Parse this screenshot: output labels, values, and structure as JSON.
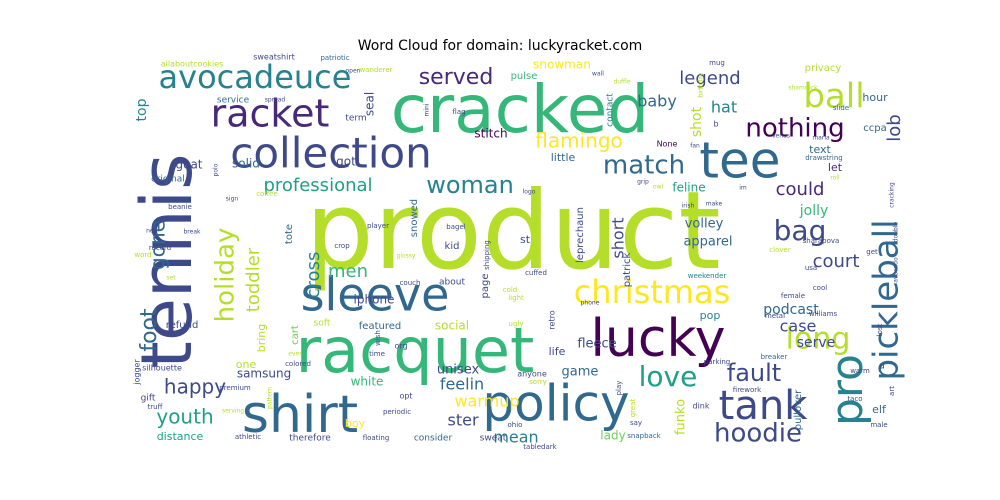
{
  "chart_data": {
    "type": "wordcloud",
    "title": "Word Cloud for domain: luckyracket.com",
    "palette": [
      "#440154",
      "#482878",
      "#3e4989",
      "#31688e",
      "#26828e",
      "#1f9e89",
      "#35b779",
      "#6ece58",
      "#b5de2b",
      "#fde725"
    ],
    "words": [
      {
        "text": "product",
        "weight": 100,
        "color": "#b5de2b"
      },
      {
        "text": "tennis",
        "weight": 72,
        "color": "#3e4989",
        "rotate": true
      },
      {
        "text": "cracked",
        "weight": 66,
        "color": "#35b779"
      },
      {
        "text": "racquet",
        "weight": 64,
        "color": "#35b779"
      },
      {
        "text": "shirt",
        "weight": 50,
        "color": "#31688e"
      },
      {
        "text": "policy",
        "weight": 50,
        "color": "#31688e"
      },
      {
        "text": "lucky",
        "weight": 50,
        "color": "#440154"
      },
      {
        "text": "sleeve",
        "weight": 46,
        "color": "#31688e"
      },
      {
        "text": "tee",
        "weight": 46,
        "color": "#31688e"
      },
      {
        "text": "collection",
        "weight": 42,
        "color": "#3e4989"
      },
      {
        "text": "tank",
        "weight": 40,
        "color": "#3e4989"
      },
      {
        "text": "racket",
        "weight": 38,
        "color": "#482878"
      },
      {
        "text": "avocadeuce",
        "weight": 34,
        "color": "#26828e"
      },
      {
        "text": "christmas",
        "weight": 32,
        "color": "#fde725"
      },
      {
        "text": "pickleball",
        "weight": 34,
        "color": "#31688e",
        "rotate": true
      },
      {
        "text": "pro",
        "weight": 38,
        "color": "#26828e",
        "rotate": true
      },
      {
        "text": "ball",
        "weight": 32,
        "color": "#b5de2b"
      },
      {
        "text": "long",
        "weight": 30,
        "color": "#b5de2b"
      },
      {
        "text": "love",
        "weight": 28,
        "color": "#1f9e89"
      },
      {
        "text": "hoodie",
        "weight": 26,
        "color": "#3e4989"
      },
      {
        "text": "holiday",
        "weight": 28,
        "color": "#b5de2b",
        "rotate": true
      },
      {
        "text": "nothing",
        "weight": 26,
        "color": "#440154"
      },
      {
        "text": "match",
        "weight": 26,
        "color": "#31688e"
      },
      {
        "text": "woman",
        "weight": 24,
        "color": "#26828e"
      },
      {
        "text": "bag",
        "weight": 26,
        "color": "#3e4989"
      },
      {
        "text": "fault",
        "weight": 24,
        "color": "#3e4989"
      },
      {
        "text": "foot",
        "weight": 24,
        "color": "#31688e",
        "rotate": true
      },
      {
        "text": "served",
        "weight": 22,
        "color": "#482878"
      },
      {
        "text": "youth",
        "weight": 20,
        "color": "#1f9e89"
      },
      {
        "text": "happy",
        "weight": 20,
        "color": "#3e4989"
      },
      {
        "text": "flamingo",
        "weight": 20,
        "color": "#fde725"
      },
      {
        "text": "professional",
        "weight": 18,
        "color": "#1f9e89"
      },
      {
        "text": "could",
        "weight": 18,
        "color": "#482878"
      },
      {
        "text": "court",
        "weight": 18,
        "color": "#3e4989"
      },
      {
        "text": "legend",
        "weight": 18,
        "color": "#3e4989"
      },
      {
        "text": "cross",
        "weight": 18,
        "color": "#26828e",
        "rotate": true
      },
      {
        "text": "toddler",
        "weight": 18,
        "color": "#b5de2b",
        "rotate": true
      },
      {
        "text": "gone",
        "weight": 20,
        "color": "#31688e",
        "rotate": true
      },
      {
        "text": "men",
        "weight": 18,
        "color": "#35b779"
      },
      {
        "text": "feelin",
        "weight": 16,
        "color": "#31688e"
      },
      {
        "text": "warmup",
        "weight": 16,
        "color": "#fde725"
      },
      {
        "text": "mean",
        "weight": 16,
        "color": "#26828e"
      },
      {
        "text": "case",
        "weight": 16,
        "color": "#3e4989"
      },
      {
        "text": "lob",
        "weight": 18,
        "color": "#3e4989",
        "rotate": true
      },
      {
        "text": "baby",
        "weight": 16,
        "color": "#31688e"
      },
      {
        "text": "hat",
        "weight": 16,
        "color": "#26828e"
      },
      {
        "text": "short",
        "weight": 16,
        "color": "#3e4989",
        "rotate": true
      },
      {
        "text": "ster",
        "weight": 16,
        "color": "#3e4989"
      },
      {
        "text": "shot",
        "weight": 14,
        "color": "#b5de2b",
        "rotate": true
      },
      {
        "text": "podcast",
        "weight": 14,
        "color": "#31688e"
      },
      {
        "text": "serve",
        "weight": 14,
        "color": "#3e4989"
      },
      {
        "text": "jolly",
        "weight": 14,
        "color": "#35b779"
      },
      {
        "text": "volley",
        "weight": 13,
        "color": "#31688e"
      },
      {
        "text": "apparel",
        "weight": 13,
        "color": "#31688e"
      },
      {
        "text": "fleece",
        "weight": 13,
        "color": "#3e4989"
      },
      {
        "text": "unisex",
        "weight": 13,
        "color": "#3e4989"
      },
      {
        "text": "game",
        "weight": 13,
        "color": "#31688e"
      },
      {
        "text": "funko",
        "weight": 13,
        "color": "#b5de2b",
        "rotate": true
      },
      {
        "text": "lady",
        "weight": 12,
        "color": "#6ece58"
      },
      {
        "text": "samsung",
        "weight": 12,
        "color": "#3e4989"
      },
      {
        "text": "white",
        "weight": 12,
        "color": "#35b779"
      },
      {
        "text": "social",
        "weight": 12,
        "color": "#b5de2b"
      },
      {
        "text": "iphone",
        "weight": 12,
        "color": "#3e4989"
      },
      {
        "text": "snowman",
        "weight": 12,
        "color": "#fde725"
      },
      {
        "text": "stitch",
        "weight": 12,
        "color": "#440154"
      },
      {
        "text": "solid",
        "weight": 12,
        "color": "#31688e"
      },
      {
        "text": "goat",
        "weight": 12,
        "color": "#3e4989"
      },
      {
        "text": "seal",
        "weight": 12,
        "color": "#3e4989",
        "rotate": true
      },
      {
        "text": "got",
        "weight": 12,
        "color": "#3e4989"
      },
      {
        "text": "top",
        "weight": 14,
        "color": "#26828e",
        "rotate": true
      },
      {
        "text": "little",
        "weight": 11,
        "color": "#31688e"
      },
      {
        "text": "feline",
        "weight": 12,
        "color": "#1f9e89"
      },
      {
        "text": "elf",
        "weight": 11,
        "color": "#31688e"
      },
      {
        "text": "pop",
        "weight": 11,
        "color": "#26828e"
      },
      {
        "text": "hour",
        "weight": 11,
        "color": "#31688e"
      },
      {
        "text": "text",
        "weight": 11,
        "color": "#31688e"
      },
      {
        "text": "let",
        "weight": 11,
        "color": "#482878"
      },
      {
        "text": "ccpa",
        "weight": 10,
        "color": "#31688e"
      },
      {
        "text": "one",
        "weight": 11,
        "color": "#b5de2b"
      },
      {
        "text": "boy",
        "weight": 11,
        "color": "#fde725"
      },
      {
        "text": "life",
        "weight": 11,
        "color": "#3e4989"
      },
      {
        "text": "distance",
        "weight": 11,
        "color": "#1f9e89"
      },
      {
        "text": "pullover",
        "weight": 10,
        "color": "#31688e",
        "rotate": true
      },
      {
        "text": "bring",
        "weight": 11,
        "color": "#b5de2b",
        "rotate": true
      },
      {
        "text": "featured",
        "weight": 10,
        "color": "#31688e"
      },
      {
        "text": "refund",
        "weight": 10,
        "color": "#3e4989"
      },
      {
        "text": "tote",
        "weight": 10,
        "color": "#31688e",
        "rotate": true
      },
      {
        "text": "cart",
        "weight": 10,
        "color": "#6ece58",
        "rotate": true
      },
      {
        "text": "snowed",
        "weight": 10,
        "color": "#31688e",
        "rotate": true
      },
      {
        "text": "kid",
        "weight": 10,
        "color": "#3e4989"
      },
      {
        "text": "st",
        "weight": 11,
        "color": "#3e4989"
      },
      {
        "text": "page",
        "weight": 10,
        "color": "#3e4989",
        "rotate": true
      },
      {
        "text": "leprechaun",
        "weight": 10,
        "color": "#3e4989",
        "rotate": true
      },
      {
        "text": "patrick",
        "weight": 10,
        "color": "#3e4989",
        "rotate": true
      },
      {
        "text": "privacy",
        "weight": 10,
        "color": "#b5de2b"
      },
      {
        "text": "served",
        "weight": 1,
        "color": "#ffffff",
        "hidden": true
      },
      {
        "text": "pulse",
        "weight": 10,
        "color": "#35b779"
      },
      {
        "text": "contact",
        "weight": 9,
        "color": "#26828e",
        "rotate": true
      },
      {
        "text": "service",
        "weight": 9,
        "color": "#31688e"
      },
      {
        "text": "term",
        "weight": 9,
        "color": "#3e4989"
      },
      {
        "text": "original",
        "weight": 9,
        "color": "#31688e"
      },
      {
        "text": "therefore",
        "weight": 9,
        "color": "#3e4989"
      },
      {
        "text": "consider",
        "weight": 9,
        "color": "#31688e"
      },
      {
        "text": "sweat",
        "weight": 9,
        "color": "#3e4989"
      },
      {
        "text": "jogger",
        "weight": 8,
        "color": "#3e4989",
        "rotate": true
      },
      {
        "text": "silhouette",
        "weight": 8,
        "color": "#3e4989"
      },
      {
        "text": "gift",
        "weight": 9,
        "color": "#3e4989"
      },
      {
        "text": "about",
        "weight": 9,
        "color": "#3e4989"
      },
      {
        "text": "soft",
        "weight": 9,
        "color": "#b5de2b"
      },
      {
        "text": "sweatshirt",
        "weight": 8,
        "color": "#3e4989"
      },
      {
        "text": "allaboutcookies",
        "weight": 8,
        "color": "#b5de2b"
      },
      {
        "text": "patriotic",
        "weight": 7,
        "color": "#31688e"
      },
      {
        "text": "mug",
        "weight": 7,
        "color": "#3e4989"
      },
      {
        "text": "slide",
        "weight": 7,
        "color": "#31688e"
      },
      {
        "text": "drawstring",
        "weight": 7,
        "color": "#31688e"
      },
      {
        "text": "cracking",
        "weight": 6,
        "color": "#3e4989",
        "rotate": true
      },
      {
        "text": "sharapova",
        "weight": 7,
        "color": "#3e4989"
      },
      {
        "text": "clover",
        "weight": 7,
        "color": "#b5de2b"
      },
      {
        "text": "weekender",
        "weight": 7,
        "color": "#26828e"
      },
      {
        "text": "williams",
        "weight": 7,
        "color": "#3e4989"
      },
      {
        "text": "metal",
        "weight": 7,
        "color": "#3e4989"
      },
      {
        "text": "breaker",
        "weight": 7,
        "color": "#31688e"
      },
      {
        "text": "parking",
        "weight": 7,
        "color": "#3e4989"
      },
      {
        "text": "firework",
        "weight": 7,
        "color": "#3e4989"
      },
      {
        "text": "snapback",
        "weight": 7,
        "color": "#31688e"
      },
      {
        "text": "tabledark",
        "weight": 7,
        "color": "#3e4989"
      },
      {
        "text": "athletic",
        "weight": 7,
        "color": "#3e4989"
      },
      {
        "text": "floating",
        "weight": 7,
        "color": "#3e4989"
      },
      {
        "text": "premium",
        "weight": 7,
        "color": "#3e4989"
      },
      {
        "text": "truff",
        "weight": 7,
        "color": "#3e4989"
      },
      {
        "text": "coffee",
        "weight": 7,
        "color": "#b5de2b"
      },
      {
        "text": "beanie",
        "weight": 7,
        "color": "#3e4989"
      },
      {
        "text": "record",
        "weight": 7,
        "color": "#3e4989"
      },
      {
        "text": "word",
        "weight": 7,
        "color": "#b5de2b"
      },
      {
        "text": "colored",
        "weight": 7,
        "color": "#3e4989"
      },
      {
        "text": "crop",
        "weight": 7,
        "color": "#3e4989"
      },
      {
        "text": "couch",
        "weight": 7,
        "color": "#3e4989"
      },
      {
        "text": "glossy",
        "weight": 6,
        "color": "#b5de2b"
      },
      {
        "text": "player",
        "weight": 7,
        "color": "#3e4989"
      },
      {
        "text": "bagel",
        "weight": 7,
        "color": "#3e4989"
      },
      {
        "text": "shipping",
        "weight": 7,
        "color": "#3e4989",
        "rotate": true
      },
      {
        "text": "cuffed",
        "weight": 7,
        "color": "#3e4989"
      },
      {
        "text": "cold",
        "weight": 7,
        "color": "#b5de2b"
      },
      {
        "text": "light",
        "weight": 7,
        "color": "#b5de2b"
      },
      {
        "text": "ugly",
        "weight": 7,
        "color": "#b5de2b"
      },
      {
        "text": "retro",
        "weight": 8,
        "color": "#3e4989",
        "rotate": true
      },
      {
        "text": "org",
        "weight": 8,
        "color": "#3e4989"
      },
      {
        "text": "time",
        "weight": 7,
        "color": "#3e4989"
      },
      {
        "text": "wish",
        "weight": 7,
        "color": "#3e4989",
        "rotate": true
      },
      {
        "text": "anyone",
        "weight": 8,
        "color": "#3e4989"
      },
      {
        "text": "sorry",
        "weight": 7,
        "color": "#b5de2b"
      },
      {
        "text": "opt",
        "weight": 8,
        "color": "#3e4989"
      },
      {
        "text": "periodic",
        "weight": 7,
        "color": "#3e4989"
      },
      {
        "text": "great",
        "weight": 7,
        "color": "#b5de2b",
        "rotate": true
      },
      {
        "text": "ohio",
        "weight": 7,
        "color": "#3e4989"
      },
      {
        "text": "play",
        "weight": 7,
        "color": "#3e4989",
        "rotate": true
      },
      {
        "text": "say",
        "weight": 7,
        "color": "#3e4989"
      },
      {
        "text": "dink",
        "weight": 8,
        "color": "#3e4989"
      },
      {
        "text": "taco",
        "weight": 7,
        "color": "#3e4989"
      },
      {
        "text": "warm",
        "weight": 7,
        "color": "#3e4989"
      },
      {
        "text": "male",
        "weight": 7,
        "color": "#3e4989"
      },
      {
        "text": "art",
        "weight": 7,
        "color": "#3e4989",
        "rotate": true
      },
      {
        "text": "double",
        "weight": 6,
        "color": "#3e4989",
        "rotate": true
      },
      {
        "text": "avocado",
        "weight": 6,
        "color": "#3e4989",
        "rotate": true
      },
      {
        "text": "lost",
        "weight": 7,
        "color": "#3e4989",
        "rotate": true
      },
      {
        "text": "get",
        "weight": 7,
        "color": "#3e4989"
      },
      {
        "text": "usa",
        "weight": 7,
        "color": "#3e4989"
      },
      {
        "text": "female",
        "weight": 7,
        "color": "#3e4989"
      },
      {
        "text": "cool",
        "weight": 7,
        "color": "#3e4989"
      },
      {
        "text": "roll",
        "weight": 6,
        "color": "#b5de2b"
      },
      {
        "text": "maria",
        "weight": 6,
        "color": "#3e4989"
      },
      {
        "text": "venus",
        "weight": 6,
        "color": "#3e4989"
      },
      {
        "text": "shamrock",
        "weight": 6,
        "color": "#b5de2b"
      },
      {
        "text": "birthday",
        "weight": 6,
        "color": "#b5de2b",
        "rotate": true
      },
      {
        "text": "wanderer",
        "weight": 7,
        "color": "#b5de2b"
      },
      {
        "text": "open",
        "weight": 6,
        "color": "#3e4989"
      },
      {
        "text": "wall",
        "weight": 6,
        "color": "#3e4989"
      },
      {
        "text": "flag",
        "weight": 7,
        "color": "#3e4989"
      },
      {
        "text": "mini",
        "weight": 6,
        "color": "#3e4989",
        "rotate": true
      },
      {
        "text": "spread",
        "weight": 6,
        "color": "#3e4989"
      },
      {
        "text": "polo",
        "weight": 6,
        "color": "#3e4989",
        "rotate": true
      },
      {
        "text": "sign",
        "weight": 6,
        "color": "#3e4989"
      },
      {
        "text": "net",
        "weight": 6,
        "color": "#3e4989"
      },
      {
        "text": "break",
        "weight": 6,
        "color": "#3e4989"
      },
      {
        "text": "set",
        "weight": 6,
        "color": "#b5de2b"
      },
      {
        "text": "ever",
        "weight": 6,
        "color": "#b5de2b"
      },
      {
        "text": "serving",
        "weight": 6,
        "color": "#b5de2b"
      },
      {
        "text": "pattern",
        "weight": 6,
        "color": "#b5de2b",
        "rotate": true
      },
      {
        "text": "phone",
        "weight": 6,
        "color": "#3e4989"
      },
      {
        "text": "logo",
        "weight": 6,
        "color": "#3e4989"
      },
      {
        "text": "None",
        "weight": 8,
        "color": "#440154"
      },
      {
        "text": "fan",
        "weight": 6,
        "color": "#3e4989"
      },
      {
        "text": "grip",
        "weight": 6,
        "color": "#3e4989"
      },
      {
        "text": "owl",
        "weight": 6,
        "color": "#b5de2b"
      },
      {
        "text": "irish",
        "weight": 6,
        "color": "#3e4989"
      },
      {
        "text": "make",
        "weight": 6,
        "color": "#3e4989"
      },
      {
        "text": "im",
        "weight": 6,
        "color": "#3e4989"
      },
      {
        "text": "b",
        "weight": 8,
        "color": "#3e4989"
      },
      {
        "text": "duffle",
        "weight": 6,
        "color": "#b5de2b"
      },
      {
        "text": "u",
        "weight": 9,
        "color": "#3e4989"
      }
    ]
  }
}
